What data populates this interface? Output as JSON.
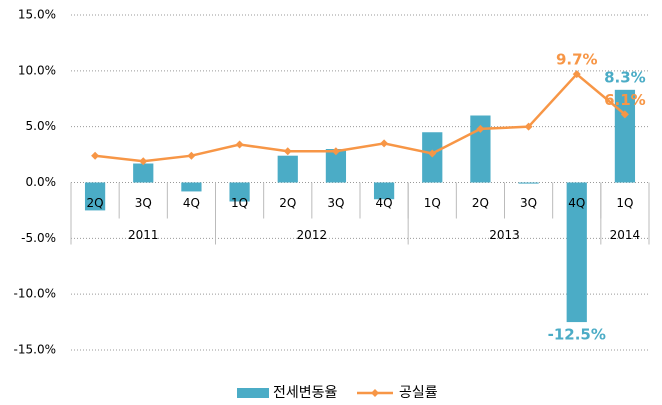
{
  "chart_data": {
    "type": "bar_line",
    "categories": [
      "2Q",
      "3Q",
      "4Q",
      "1Q",
      "2Q",
      "3Q",
      "4Q",
      "1Q",
      "2Q",
      "3Q",
      "4Q",
      "1Q"
    ],
    "groups": [
      {
        "label": "2011",
        "span": 3
      },
      {
        "label": "2012",
        "span": 4
      },
      {
        "label": "2013",
        "span": 4
      },
      {
        "label": "2014",
        "span": 1
      }
    ],
    "series": [
      {
        "name": "전세변동율",
        "type": "bar",
        "color": "#4bacc6",
        "values": [
          -2.5,
          1.7,
          -0.8,
          -1.7,
          2.4,
          3.0,
          -1.5,
          4.5,
          6.0,
          -0.1,
          -12.5,
          8.3
        ],
        "value_labels": [
          null,
          null,
          null,
          null,
          null,
          null,
          null,
          null,
          null,
          null,
          "-12.5%",
          "8.3%"
        ]
      },
      {
        "name": "공실률",
        "type": "line",
        "color": "#f79646",
        "values": [
          2.4,
          1.9,
          2.4,
          3.4,
          2.8,
          2.8,
          3.5,
          2.6,
          4.8,
          5.0,
          9.7,
          6.1
        ],
        "value_labels": [
          null,
          null,
          null,
          null,
          null,
          null,
          null,
          null,
          null,
          null,
          "9.7%",
          "6.1%"
        ]
      }
    ],
    "ylim": [
      -15,
      15
    ],
    "yticks": [
      {
        "value": -15,
        "label": "-15.0%"
      },
      {
        "value": -10,
        "label": "-10.0%"
      },
      {
        "value": -5,
        "label": "-5.0%"
      },
      {
        "value": 0,
        "label": "0.0%"
      },
      {
        "value": 5,
        "label": "5.0%"
      },
      {
        "value": 10,
        "label": "10.0%"
      },
      {
        "value": 15,
        "label": "15.0%"
      }
    ],
    "grid": true,
    "legend": "bottom"
  }
}
